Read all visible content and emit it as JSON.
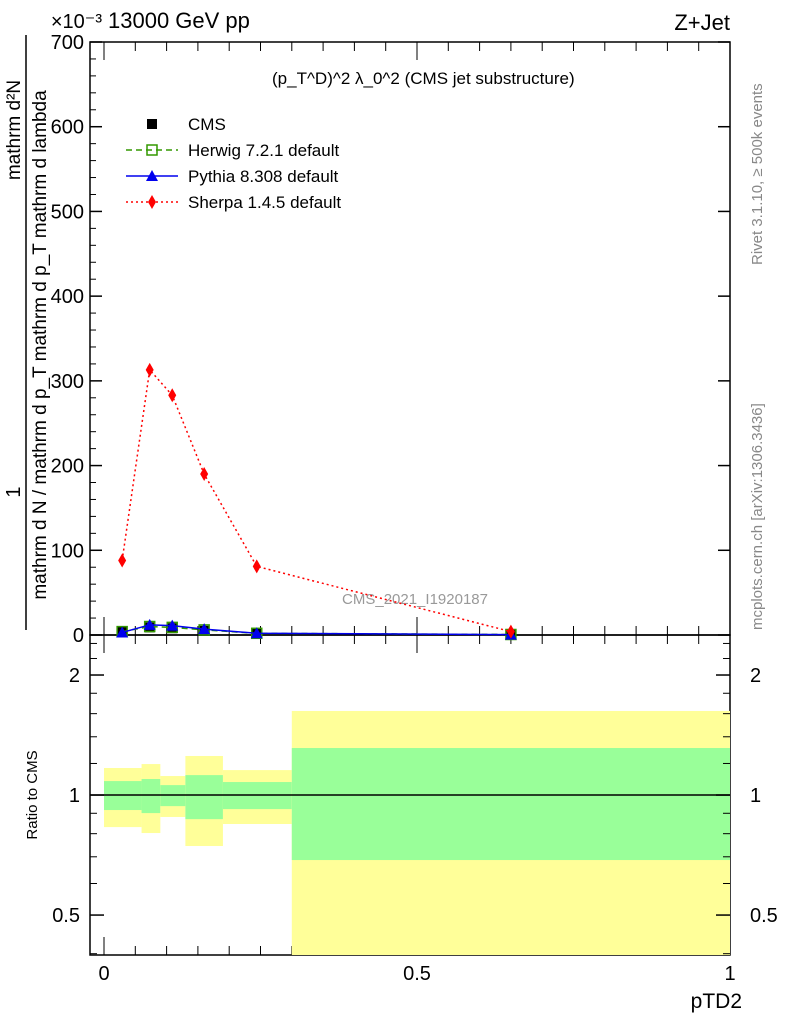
{
  "header": {
    "energy": "13000 GeV pp",
    "process": "Z+Jet",
    "exponent": "×10⁻³"
  },
  "side": {
    "rivet": "Rivet 3.1.10, ≥ 500k events",
    "site": "mcplots.cern.ch [arXiv:1306.3436]"
  },
  "watermark": "CMS_2021_I1920187",
  "chart_data": [
    {
      "type": "line",
      "title": "(p_T^D)^2 λ_0^2 (CMS jet substructure)",
      "title_main": "(p",
      "title_rest": " λ_0",
      "title_end": " (CMS jet substructure)",
      "ylabel_top": "1",
      "ylabel_num": "mathrm d²N",
      "ylabel_den": "mathrm d N / mathrm d p_T mathrm d p_T mathrm d lambda",
      "xlim": [
        0,
        1
      ],
      "ylim": [
        0,
        700
      ],
      "yticks": [
        0,
        100,
        200,
        300,
        400,
        500,
        600,
        700
      ],
      "legend_placement": "top-left",
      "x": [
        0.029,
        0.073,
        0.109,
        0.16,
        0.244,
        0.65
      ],
      "series": [
        {
          "name": "CMS",
          "color": "#000000",
          "values": [
            4,
            9,
            8,
            5,
            2,
            0.5
          ]
        },
        {
          "name": "Herwig 7.2.1 default",
          "color": "#339900",
          "values": [
            4,
            10,
            9,
            6,
            2,
            0.6
          ]
        },
        {
          "name": "Pythia 8.308 default",
          "color": "#0000ee",
          "values": [
            3,
            12,
            11,
            7,
            2,
            0.5
          ]
        },
        {
          "name": "Sherpa 1.4.5 default",
          "color": "#ff0000",
          "values": [
            88,
            313,
            283,
            190,
            81,
            4
          ]
        }
      ]
    },
    {
      "type": "area",
      "ylabel": "Ratio to CMS",
      "xlabel": "pTD2",
      "yscale": "log",
      "ylim": [
        0.397,
        2.52
      ],
      "yticks": [
        0.5,
        1,
        2
      ],
      "ytick_labels": [
        "0.5",
        "1",
        "2"
      ],
      "xticks": [
        0,
        0.5,
        1
      ],
      "xtick_labels": [
        "0",
        "0.5",
        "1"
      ],
      "bin_edges": [
        0,
        0.06,
        0.09,
        0.13,
        0.19,
        0.3,
        1.0
      ],
      "band_1sigma": {
        "color": "#99ff99",
        "low": [
          0.917,
          0.901,
          0.938,
          0.87,
          0.922,
          0.687
        ],
        "high": [
          1.084,
          1.097,
          1.059,
          1.122,
          1.078,
          1.312
        ]
      },
      "band_2sigma": {
        "color": "#ffff99",
        "low": [
          0.831,
          0.803,
          0.881,
          0.745,
          0.846,
          0.3
        ],
        "high": [
          1.169,
          1.196,
          1.116,
          1.253,
          1.155,
          1.625
        ]
      }
    }
  ]
}
